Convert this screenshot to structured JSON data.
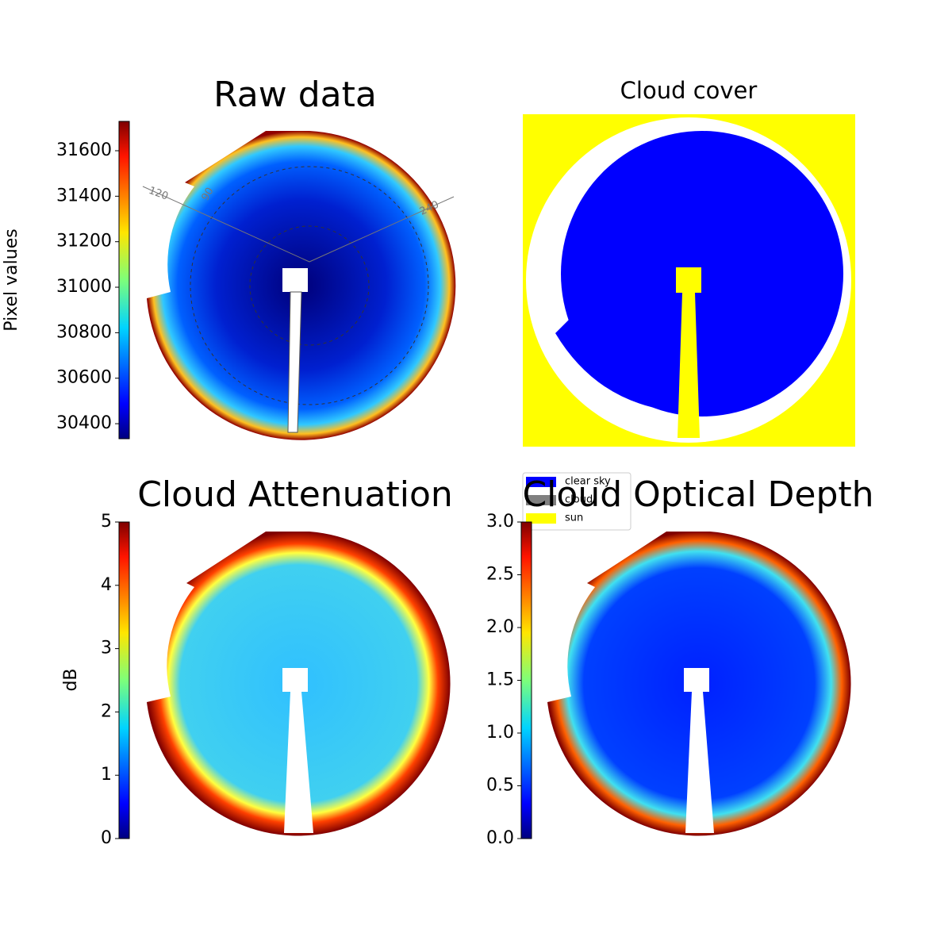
{
  "chart_data": [
    {
      "type": "heatmap",
      "title": "Raw data",
      "ylabel": "Pixel values",
      "colormap": "jet",
      "ylim": [
        30334,
        31729
      ],
      "yticks": [
        30400,
        30600,
        30800,
        31000,
        31200,
        31400,
        31600
      ],
      "annotations": [
        "120",
        "90",
        "240"
      ]
    },
    {
      "type": "categorical-image",
      "title": "Cloud cover",
      "series": [
        {
          "name": "clear sky",
          "color": "#0000ff"
        },
        {
          "name": "cloud",
          "color": "#808080"
        },
        {
          "name": "sun",
          "color": "#ffff00"
        }
      ]
    },
    {
      "type": "heatmap",
      "title": "Cloud Attenuation",
      "ylabel": "dB",
      "colormap": "jet",
      "ylim": [
        0,
        5
      ],
      "yticks": [
        0,
        1,
        2,
        3,
        4,
        5
      ]
    },
    {
      "type": "heatmap",
      "title": "Cloud Optical Depth",
      "colormap": "jet",
      "ylim": [
        0,
        3
      ],
      "yticks": [
        {
          "value": 0,
          "label": "0.0"
        },
        {
          "value": 0.5,
          "label": "0.5"
        },
        {
          "value": 1,
          "label": "1.0"
        },
        {
          "value": 1.5,
          "label": "1.5"
        },
        {
          "value": 2,
          "label": "2.0"
        },
        {
          "value": 2.5,
          "label": "2.5"
        },
        {
          "value": 3,
          "label": "3.0"
        }
      ]
    }
  ]
}
